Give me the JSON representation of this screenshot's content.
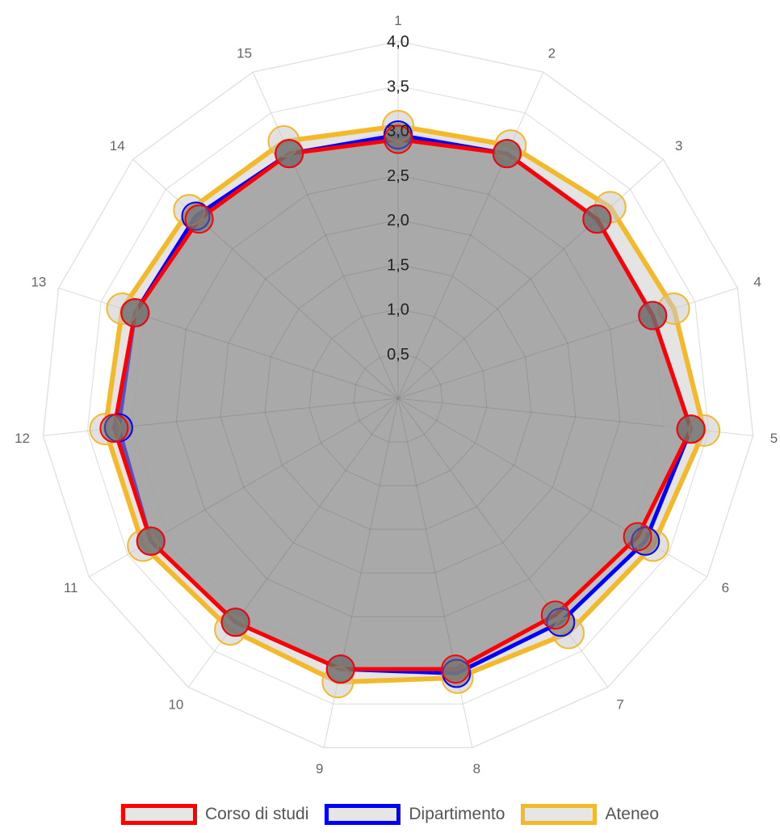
{
  "chart_data": {
    "type": "radar",
    "categories": [
      "1",
      "2",
      "3",
      "4",
      "5",
      "6",
      "7",
      "8",
      "9",
      "10",
      "11",
      "12",
      "13",
      "14",
      "15"
    ],
    "r_max": 4.0,
    "ticks": [
      "0,5",
      "1,0",
      "1,5",
      "2,0",
      "2,5",
      "3,0",
      "3,5",
      "4,0"
    ],
    "tick_values": [
      0.5,
      1.0,
      1.5,
      2.0,
      2.5,
      3.0,
      3.5,
      4.0
    ],
    "grid": true,
    "legend_position": "bottom",
    "series": [
      {
        "name": "Corso di studi",
        "color": "#ff0000",
        "values": [
          2.9,
          3.0,
          3.0,
          3.0,
          3.3,
          3.1,
          3.0,
          3.1,
          3.1,
          3.1,
          3.2,
          3.2,
          3.1,
          3.0,
          3.0
        ]
      },
      {
        "name": "Dipartimento",
        "color": "#0000ff",
        "values": [
          2.95,
          3.0,
          3.0,
          3.0,
          3.3,
          3.2,
          3.1,
          3.15,
          3.1,
          3.1,
          3.2,
          3.15,
          3.1,
          3.05,
          3.0
        ]
      },
      {
        "name": "Ateneo",
        "color": "#f4b92a",
        "values": [
          3.05,
          3.1,
          3.2,
          3.25,
          3.45,
          3.3,
          3.25,
          3.2,
          3.25,
          3.2,
          3.3,
          3.3,
          3.25,
          3.15,
          3.15
        ]
      }
    ]
  }
}
